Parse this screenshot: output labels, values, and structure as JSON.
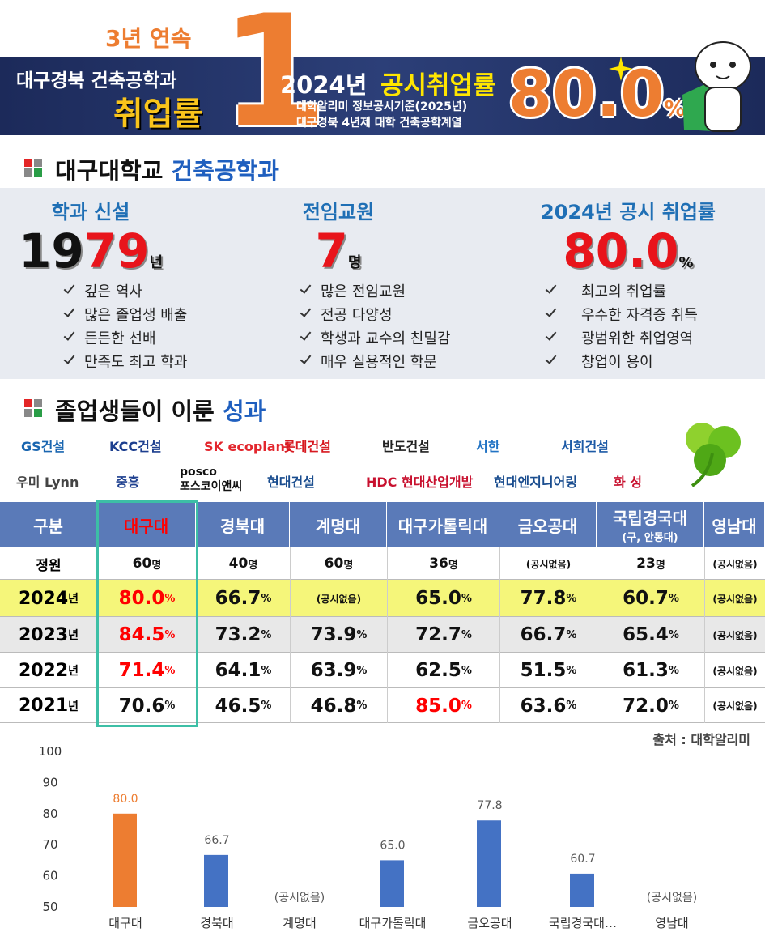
{
  "header": {
    "streak": "3년 연속",
    "dept": "대구경북 건축공학과",
    "rate_name": "취업률",
    "rank": "1",
    "year": "2024년",
    "headline": "공시취업률",
    "basis": "대학알리미 정보공시기준(2025년)",
    "scope": "대구경북 4년제 대학 건축공학계열",
    "rate": "80.0",
    "rate_unit": "%"
  },
  "intro": {
    "title_a": "대구대학교",
    "title_b": "건축공학과",
    "facts": [
      {
        "label": "학과 신설",
        "value": [
          {
            "text": "19",
            "color": "#111111"
          },
          {
            "text": "79",
            "color": "#e8141b"
          }
        ],
        "unit": "년",
        "points": [
          "깊은 역사",
          "많은 졸업생 배출",
          "든든한 선배",
          "만족도 최고 학과"
        ]
      },
      {
        "label": "전임교원",
        "value": [
          {
            "text": "7",
            "color": "#e8141b"
          }
        ],
        "unit": "명",
        "points": [
          "많은 전임교원",
          "전공 다양성",
          "학생과 교수의 친밀감",
          "매우 실용적인 학문"
        ]
      },
      {
        "label": "2024년 공시 취업률",
        "value": [
          {
            "text": "80.0",
            "color": "#e8141b"
          }
        ],
        "unit": "%",
        "points": [
          "최고의 취업률",
          "우수한 자격증 취득",
          "광범위한 취업영역",
          "창업이 용이"
        ]
      }
    ]
  },
  "achievements": {
    "title_a": "졸업생들이 이룬",
    "title_b": "성과",
    "companies": [
      {
        "lines": [
          "GS건설"
        ],
        "color": "#1a66b0"
      },
      {
        "lines": [
          "KCC건설"
        ],
        "color": "#1d3f8f"
      },
      {
        "lines": [
          "SK ecoplant"
        ],
        "color": "#e3262d"
      },
      {
        "lines": [
          "롯데건설"
        ],
        "color": "#d71920"
      },
      {
        "lines": [
          "반도건설"
        ],
        "color": "#222222"
      },
      {
        "lines": [
          "서한"
        ],
        "color": "#2173c4"
      },
      {
        "lines": [
          "서희건설"
        ],
        "color": "#1d5aa6"
      },
      {
        "lines": [
          "우미 Lynn"
        ],
        "color": "#444444"
      },
      {
        "lines": [
          "중흥"
        ],
        "color": "#1d3f8f"
      },
      {
        "lines": [
          "posco",
          "포스코이앤씨"
        ],
        "color": "#111111"
      },
      {
        "lines": [
          "현대건설"
        ],
        "color": "#1a4d8f"
      },
      {
        "lines": [
          "HDC 현대산업개발"
        ],
        "color": "#c8102e"
      },
      {
        "lines": [
          "현대엔지니어링"
        ],
        "color": "#1a4d8f"
      },
      {
        "lines": [
          "화 성"
        ],
        "color": "#c8102e"
      }
    ]
  },
  "table": {
    "header": [
      {
        "text": "구분"
      },
      {
        "text": "대구대",
        "color": "#ff0000"
      },
      {
        "text": "경북대"
      },
      {
        "text": "계명대"
      },
      {
        "text": "대구가톨릭대"
      },
      {
        "text": "금오공대"
      },
      {
        "text": "국립경국대",
        "sub": "(구, 안동대)"
      },
      {
        "text": "영남대"
      }
    ],
    "rows": [
      {
        "label": [
          "정원"
        ],
        "fill": "#ffffff",
        "cells": [
          {
            "t": "60",
            "u": "명"
          },
          {
            "t": "40",
            "u": "명"
          },
          {
            "t": "60",
            "u": "명"
          },
          {
            "t": "36",
            "u": "명"
          },
          {
            "t": "(공시없음)"
          },
          {
            "t": "23",
            "u": "명"
          },
          {
            "t": "(공시없음)"
          }
        ]
      },
      {
        "label": [
          "2024",
          "년"
        ],
        "fill": "#f5f67a",
        "cells": [
          {
            "t": "80.0",
            "u": "%",
            "color": "#ff0000"
          },
          {
            "t": "66.7",
            "u": "%"
          },
          {
            "t": "(공시없음)"
          },
          {
            "t": "65.0",
            "u": "%"
          },
          {
            "t": "77.8",
            "u": "%"
          },
          {
            "t": "60.7",
            "u": "%"
          },
          {
            "t": "(공시없음)"
          }
        ]
      },
      {
        "label": [
          "2023",
          "년"
        ],
        "fill": "#e8e8e8",
        "cells": [
          {
            "t": "84.5",
            "u": "%",
            "color": "#ff0000"
          },
          {
            "t": "73.2",
            "u": "%"
          },
          {
            "t": "73.9",
            "u": "%"
          },
          {
            "t": "72.7",
            "u": "%"
          },
          {
            "t": "66.7",
            "u": "%"
          },
          {
            "t": "65.4",
            "u": "%"
          },
          {
            "t": "(공시없음)"
          }
        ]
      },
      {
        "label": [
          "2022",
          "년"
        ],
        "fill": "#ffffff",
        "cells": [
          {
            "t": "71.4",
            "u": "%",
            "color": "#ff0000"
          },
          {
            "t": "64.1",
            "u": "%"
          },
          {
            "t": "63.9",
            "u": "%"
          },
          {
            "t": "62.5",
            "u": "%"
          },
          {
            "t": "51.5",
            "u": "%"
          },
          {
            "t": "61.3",
            "u": "%"
          },
          {
            "t": "(공시없음)"
          }
        ]
      },
      {
        "label": [
          "2021",
          "년"
        ],
        "fill": "#ffffff",
        "cells": [
          {
            "t": "70.6",
            "u": "%"
          },
          {
            "t": "46.5",
            "u": "%"
          },
          {
            "t": "46.8",
            "u": "%"
          },
          {
            "t": "85.0",
            "u": "%",
            "color": "#ff0000"
          },
          {
            "t": "63.6",
            "u": "%"
          },
          {
            "t": "72.0",
            "u": "%"
          },
          {
            "t": "(공시없음)"
          }
        ]
      }
    ],
    "source": "출처 : 대학알리미"
  },
  "chart_data": {
    "type": "bar",
    "categories": [
      "대구대",
      "경북대",
      "계명대",
      "대구가톨릭대",
      "금오공대",
      "국립경국대…",
      "영남대"
    ],
    "values": [
      80.0,
      66.7,
      null,
      65.0,
      77.8,
      60.7,
      null
    ],
    "value_labels": [
      "80.0",
      "66.7",
      "(공시없음)",
      "65.0",
      "77.8",
      "60.7",
      "(공시없음)"
    ],
    "colors": [
      "#ed7d31",
      "#4472c4",
      "#4472c4",
      "#4472c4",
      "#4472c4",
      "#4472c4",
      "#4472c4"
    ],
    "value_label_colors": [
      "#ed7d31",
      "#595959",
      "#595959",
      "#595959",
      "#595959",
      "#595959",
      "#595959"
    ],
    "ylim": [
      50,
      100
    ],
    "yticks": [
      50,
      60,
      70,
      80,
      90,
      100
    ],
    "grid": false
  }
}
